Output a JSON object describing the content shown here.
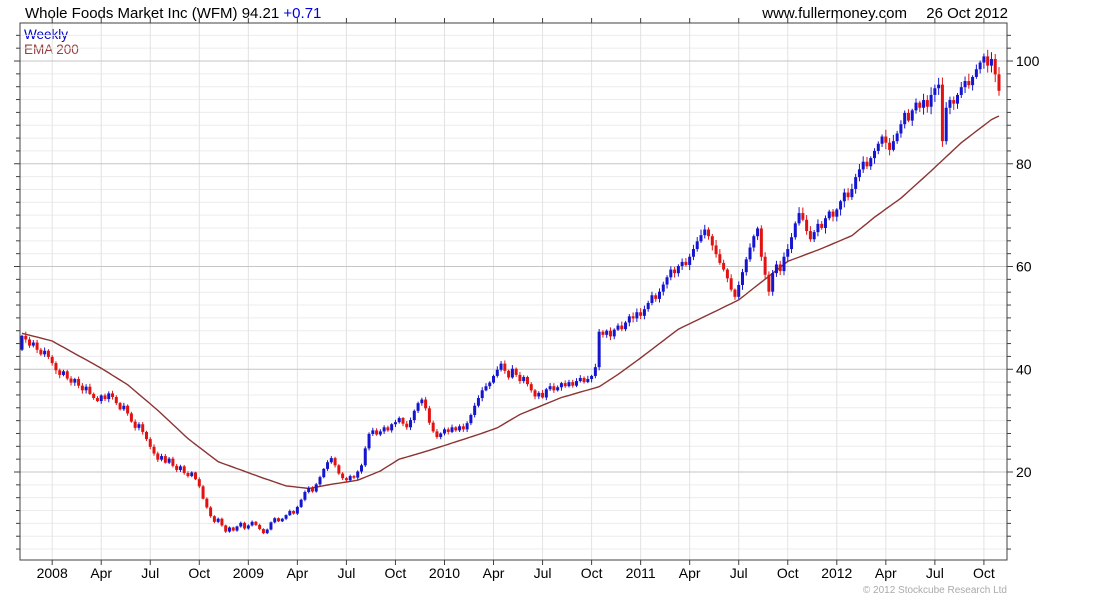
{
  "header": {
    "title": "Whole Foods Market Inc (WFM) 94.21",
    "change": "+0.71",
    "site": "www.fullermoney.com",
    "date": "26 Oct 2012"
  },
  "legend": {
    "timeframe": "Weekly",
    "overlay": "EMA 200"
  },
  "footer": {
    "copyright": "© 2012 Stockcube Research Ltd"
  },
  "colors": {
    "up": "#1515cf",
    "down": "#e11212",
    "ema": "#8b3434",
    "grid_minor": "#ececec",
    "grid_major": "#c6c6c6",
    "grid_vertical": "#e2e2e2",
    "border": "#404040",
    "axis_text": "#000000",
    "legend_timeframe": "#0000cc",
    "legend_overlay": "#994040",
    "change": "#0000dd",
    "copyright": "#aaaaaa"
  },
  "chart_data": {
    "type": "candlestick",
    "title": "Whole Foods Market Inc (WFM) weekly candlesticks with EMA 200 overlay",
    "scale": "linear",
    "x_tick_labels": [
      "2008",
      "Apr",
      "Jul",
      "Oct",
      "2009",
      "Apr",
      "Jul",
      "Oct",
      "2010",
      "Apr",
      "Jul",
      "Oct",
      "2011",
      "Apr",
      "Jul",
      "Oct",
      "2012",
      "Apr",
      "Jul",
      "Oct"
    ],
    "x_tick_week_indexes": [
      8,
      21,
      34,
      47,
      60,
      73,
      86,
      99,
      112,
      125,
      138,
      151,
      164,
      177,
      190,
      203,
      216,
      229,
      242,
      255
    ],
    "y_ticks": [
      20,
      40,
      60,
      80,
      100
    ],
    "y_minor_step": 2.5,
    "ylim": [
      2.87,
      107.4
    ],
    "first_open": 43.8,
    "last_close": 94.21,
    "weekly_closes": [
      46.5,
      45.8,
      44.6,
      45.2,
      43.8,
      42.9,
      43.6,
      42.4,
      41.2,
      39.8,
      38.9,
      39.6,
      38.2,
      37.4,
      38.1,
      36.8,
      35.9,
      36.6,
      35.2,
      34.4,
      33.8,
      34.9,
      34.2,
      35.3,
      34.6,
      33.4,
      32.2,
      32.9,
      31.4,
      29.8,
      28.6,
      29.3,
      27.8,
      26.4,
      24.9,
      23.6,
      22.4,
      23.1,
      21.8,
      22.6,
      21.2,
      20.4,
      21.1,
      19.8,
      19.2,
      19.9,
      18.6,
      17.2,
      14.8,
      13.1,
      11.4,
      10.3,
      10.9,
      9.6,
      8.4,
      9.2,
      8.6,
      9.4,
      10.1,
      9.0,
      9.6,
      10.3,
      9.7,
      8.9,
      8.1,
      8.8,
      10.2,
      11.0,
      10.4,
      10.9,
      11.6,
      12.4,
      11.9,
      13.2,
      14.6,
      16.1,
      16.9,
      16.2,
      17.6,
      19.0,
      20.6,
      21.9,
      22.7,
      21.3,
      19.7,
      18.8,
      18.4,
      19.2,
      18.9,
      20.1,
      21.3,
      24.6,
      27.4,
      28.1,
      27.3,
      27.9,
      28.7,
      28.1,
      29.3,
      29.7,
      30.5,
      29.4,
      28.7,
      30.1,
      31.9,
      33.4,
      34.1,
      32.4,
      29.6,
      27.9,
      26.8,
      27.5,
      28.3,
      27.8,
      28.7,
      28.1,
      28.9,
      28.3,
      29.5,
      31.1,
      32.9,
      34.4,
      35.9,
      36.7,
      37.4,
      38.7,
      39.9,
      41.1,
      39.7,
      38.4,
      40.1,
      38.9,
      37.7,
      38.5,
      37.1,
      35.9,
      34.7,
      35.4,
      34.5,
      36.1,
      36.7,
      35.9,
      36.5,
      37.3,
      36.7,
      37.5,
      36.8,
      37.7,
      38.3,
      37.5,
      38.1,
      38.7,
      40.4,
      47.3,
      46.7,
      47.5,
      46.4,
      47.7,
      48.5,
      47.8,
      49.1,
      50.3,
      49.9,
      51.1,
      50.4,
      51.7,
      52.9,
      54.4,
      53.7,
      55.1,
      56.5,
      57.9,
      59.4,
      58.7,
      60.1,
      60.9,
      60.3,
      61.9,
      63.4,
      64.9,
      66.1,
      67.2,
      65.9,
      64.1,
      62.4,
      60.7,
      59.4,
      57.7,
      55.5,
      54.1,
      56.4,
      58.9,
      61.4,
      63.7,
      65.9,
      67.4,
      61.9,
      58.4,
      55.1,
      58.7,
      60.4,
      59.1,
      61.9,
      63.4,
      65.7,
      68.4,
      70.4,
      69.1,
      66.9,
      65.3,
      66.7,
      68.3,
      67.5,
      69.4,
      70.7,
      69.7,
      71.1,
      72.7,
      74.4,
      73.5,
      75.1,
      77.4,
      78.9,
      80.4,
      79.5,
      81.1,
      82.5,
      83.9,
      85.3,
      84.1,
      82.7,
      84.4,
      85.9,
      87.7,
      89.9,
      88.4,
      90.4,
      91.9,
      90.9,
      92.4,
      91.1,
      93.4,
      94.7,
      95.4,
      84.4,
      90.9,
      92.4,
      91.7,
      93.4,
      94.9,
      96.1,
      95.3,
      96.9,
      98.4,
      99.7,
      100.9,
      99.1,
      100.4,
      97.4,
      94.2
    ],
    "ema200_anchors": [
      [
        0,
        47
      ],
      [
        8,
        45.5
      ],
      [
        21,
        40.2
      ],
      [
        28,
        37
      ],
      [
        36,
        32
      ],
      [
        44,
        26.5
      ],
      [
        52,
        22
      ],
      [
        58,
        20.4
      ],
      [
        64,
        18.8
      ],
      [
        70,
        17.3
      ],
      [
        76,
        16.8
      ],
      [
        82,
        17.6
      ],
      [
        89,
        18.4
      ],
      [
        95,
        20.2
      ],
      [
        100,
        22.5
      ],
      [
        107,
        24
      ],
      [
        113,
        25.4
      ],
      [
        121,
        27.3
      ],
      [
        126,
        28.6
      ],
      [
        132,
        31.2
      ],
      [
        143,
        34.5
      ],
      [
        153,
        36.6
      ],
      [
        158,
        39
      ],
      [
        164,
        42.2
      ],
      [
        174,
        47.8
      ],
      [
        185,
        51.7
      ],
      [
        190,
        53.5
      ],
      [
        203,
        61
      ],
      [
        212,
        63.5
      ],
      [
        220,
        66
      ],
      [
        226,
        69.6
      ],
      [
        233,
        73.3
      ],
      [
        241,
        78.6
      ],
      [
        249,
        84.1
      ],
      [
        257,
        88.6
      ],
      [
        259,
        89.3
      ]
    ]
  }
}
